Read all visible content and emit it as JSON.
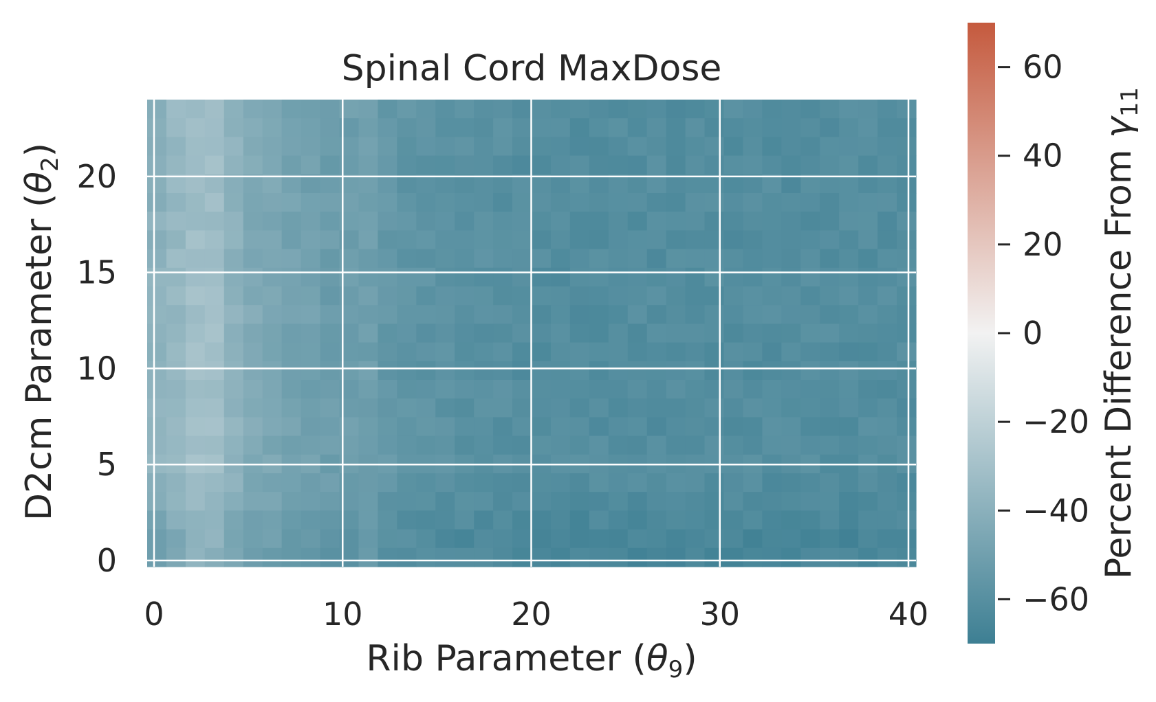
{
  "chart_data": {
    "type": "heatmap",
    "title": "Spinal Cord MaxDose",
    "xlabel": {
      "prefix": "Rib Parameter (",
      "sym": "θ",
      "sub": "9",
      "suffix": ")"
    },
    "ylabel": {
      "prefix": "D2cm Parameter (",
      "sym": "θ",
      "sub": "2",
      "suffix": ")"
    },
    "xlim": [
      0,
      40
    ],
    "ylim": [
      0,
      24
    ],
    "x_ticks": [
      0,
      10,
      20,
      30,
      40
    ],
    "y_ticks": [
      0,
      5,
      10,
      15,
      20
    ],
    "grid": true,
    "colorbar": {
      "label": {
        "prefix": "Percent Difference From ",
        "sym": "γ",
        "sub": "11"
      },
      "min": -70,
      "max": 70,
      "ticks": [
        -60,
        -40,
        -20,
        0,
        20,
        40,
        60
      ],
      "low_color": "#3d7f93",
      "mid_color": "#f2f2f2",
      "high_color": "#c55a3e"
    },
    "column_profile": {
      "x": [
        0,
        1,
        2,
        3,
        4,
        5,
        6,
        7,
        8,
        9,
        10,
        11,
        12,
        13,
        14,
        15,
        16,
        17,
        18,
        19,
        20,
        22,
        24,
        26,
        28,
        30,
        32,
        34,
        36,
        38,
        40
      ],
      "values": [
        -44,
        -38,
        -36,
        -30,
        -36,
        -44,
        -46,
        -48,
        -50,
        -51,
        -54,
        -50,
        -54,
        -57,
        -58,
        -59,
        -60,
        -60,
        -60,
        -61,
        -62,
        -62,
        -62,
        -62,
        -62,
        -62,
        -62,
        -62,
        -62,
        -62,
        -62
      ]
    },
    "row_profile": {
      "y": [
        0,
        1,
        2,
        3,
        4,
        5,
        6,
        8,
        10,
        12,
        14,
        16,
        18,
        20,
        22,
        24
      ],
      "values": [
        -8,
        -12,
        -8,
        -4,
        0,
        4,
        2,
        2,
        2,
        2,
        2,
        2,
        1,
        2,
        2,
        2
      ]
    },
    "noise_amplitude": 3
  }
}
